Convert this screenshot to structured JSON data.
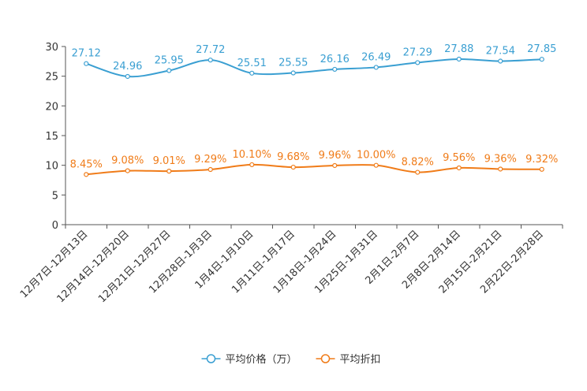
{
  "chart_data": {
    "type": "line",
    "title": "",
    "xlabel": "",
    "ylabel": "",
    "ylim": [
      0,
      30
    ],
    "yticks": [
      0,
      5,
      10,
      15,
      20,
      25,
      30
    ],
    "grid": false,
    "legend_position": "bottom",
    "categories": [
      "12月7日-12月13日",
      "12月14日-12月20日",
      "12月21日-12月27日",
      "12月28日-1月3日",
      "1月4日-1月10日",
      "1月11日-1月17日",
      "1月18日-1月24日",
      "1月25日-1月31日",
      "2月1日-2月7日",
      "2月8日-2月14日",
      "2月15日-2月21日",
      "2月22日-2月28日"
    ],
    "series": [
      {
        "name": "平均价格（万）",
        "color": "#3a9fd2",
        "values": [
          27.12,
          24.96,
          25.95,
          27.72,
          25.51,
          25.55,
          26.16,
          26.49,
          27.29,
          27.88,
          27.54,
          27.85
        ],
        "labels": [
          "27.12",
          "24.96",
          "25.95",
          "27.72",
          "25.51",
          "25.55",
          "26.16",
          "26.49",
          "27.29",
          "27.88",
          "27.54",
          "27.85"
        ]
      },
      {
        "name": "平均折扣",
        "color": "#f07c19",
        "values": [
          8.45,
          9.08,
          9.01,
          9.29,
          10.1,
          9.68,
          9.96,
          10.0,
          8.82,
          9.56,
          9.36,
          9.32
        ],
        "labels": [
          "8.45%",
          "9.08%",
          "9.01%",
          "9.29%",
          "10.10%",
          "9.68%",
          "9.96%",
          "10.00%",
          "8.82%",
          "9.56%",
          "9.36%",
          "9.32%"
        ]
      }
    ]
  }
}
